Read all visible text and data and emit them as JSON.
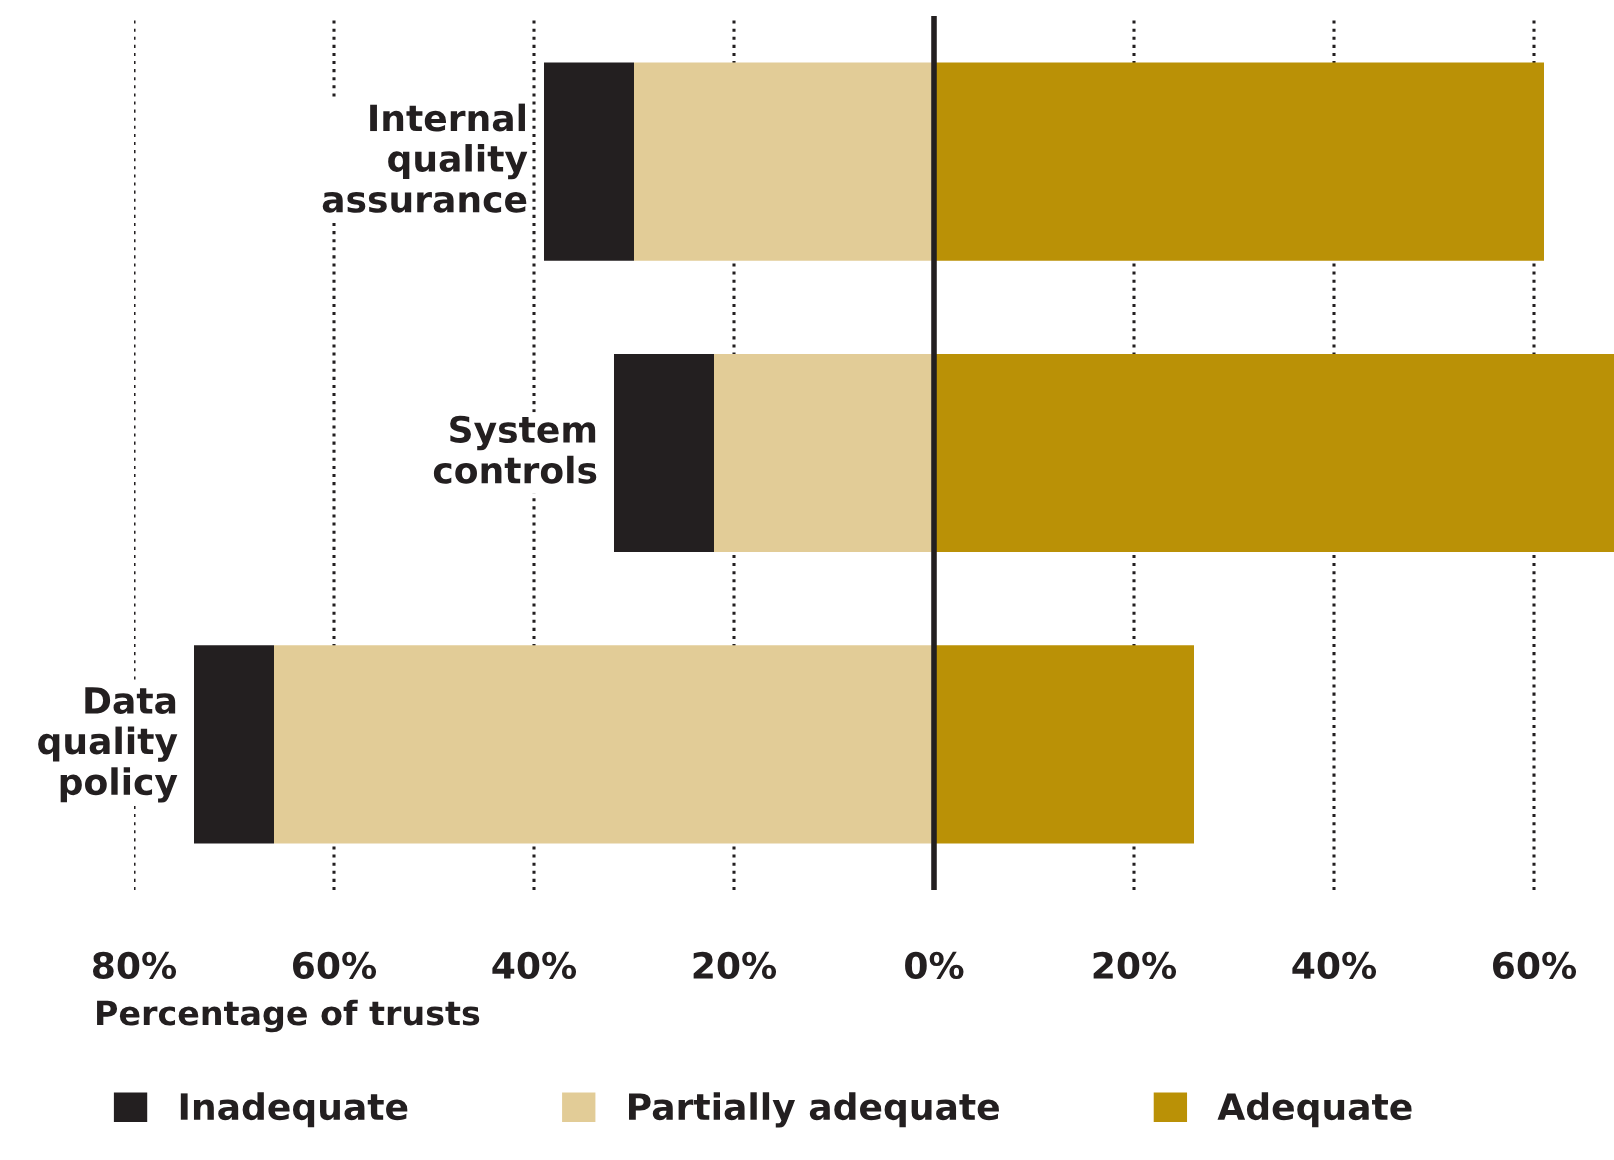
{
  "chart_data": {
    "type": "bar",
    "orientation": "horizontal",
    "categories": [
      "Internal\nquality\nassurance",
      "System\ncontrols",
      "Data\nquality\npolicy"
    ],
    "series": [
      {
        "name": "Inadequate",
        "color": "#231f20",
        "base": [
          -39,
          -32,
          -74
        ],
        "values": [
          9,
          10,
          8
        ]
      },
      {
        "name": "Partially adequate",
        "color": "#e2cc97",
        "base": [
          -30,
          -22,
          -66
        ],
        "values": [
          30,
          22,
          66
        ]
      },
      {
        "name": "Adequate",
        "color": "#ba9106",
        "values": [
          61,
          68,
          26
        ]
      }
    ],
    "xlim": [
      -80,
      68
    ],
    "xticks": [
      {
        "value": -80,
        "label": "80%"
      },
      {
        "value": -60,
        "label": "60%"
      },
      {
        "value": -40,
        "label": "40%"
      },
      {
        "value": -20,
        "label": "20%"
      },
      {
        "value": 0,
        "label": "0%"
      },
      {
        "value": 20,
        "label": "20%"
      },
      {
        "value": 40,
        "label": "40%"
      },
      {
        "value": 60,
        "label": "60%"
      }
    ],
    "xlabel": "Percentage of trusts",
    "ref_lines": [
      {
        "axis": "x",
        "value": 0,
        "color": "#231f20"
      }
    ],
    "grid": "x",
    "line_style": "dotted",
    "legend": "bottom"
  }
}
